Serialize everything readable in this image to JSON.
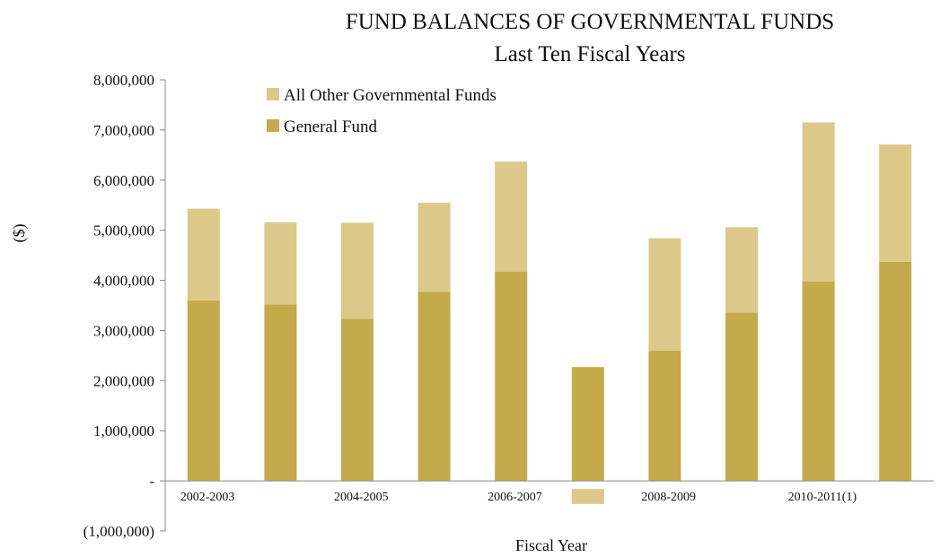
{
  "chart_data": {
    "type": "bar",
    "stacked": true,
    "title": "FUND BALANCES OF GOVERNMENTAL FUNDS",
    "subtitle": "Last Ten Fiscal Years",
    "xlabel": "Fiscal Year",
    "ylabel": "($)",
    "ylim": [
      -1000000,
      8000000
    ],
    "y_ticks": [
      {
        "value": 8000000,
        "label": "8,000,000"
      },
      {
        "value": 7000000,
        "label": "7,000,000"
      },
      {
        "value": 6000000,
        "label": "6,000,000"
      },
      {
        "value": 5000000,
        "label": "5,000,000"
      },
      {
        "value": 4000000,
        "label": "4,000,000"
      },
      {
        "value": 3000000,
        "label": "3,000,000"
      },
      {
        "value": 2000000,
        "label": "2,000,000"
      },
      {
        "value": 1000000,
        "label": "1,000,000"
      },
      {
        "value": 0,
        "label": "-"
      },
      {
        "value": -1000000,
        "label": "(1,000,000)"
      }
    ],
    "categories": [
      "2002-2003",
      "",
      "2004-2005",
      "",
      "2006-2007",
      "",
      "2008-2009",
      "",
      "2010-2011(1)",
      ""
    ],
    "legend_position": "top-left",
    "grid": false,
    "series": [
      {
        "name": "General Fund",
        "color": "#c4aa4a",
        "values": [
          3600000,
          3520000,
          3230000,
          3770000,
          4170000,
          2270000,
          2600000,
          3360000,
          3980000,
          4370000
        ]
      },
      {
        "name": "All Other Governmental Funds",
        "color": "#dcc98a",
        "values": [
          1830000,
          1640000,
          1920000,
          1780000,
          2200000,
          -300000,
          2240000,
          1700000,
          3170000,
          2340000
        ]
      }
    ]
  }
}
